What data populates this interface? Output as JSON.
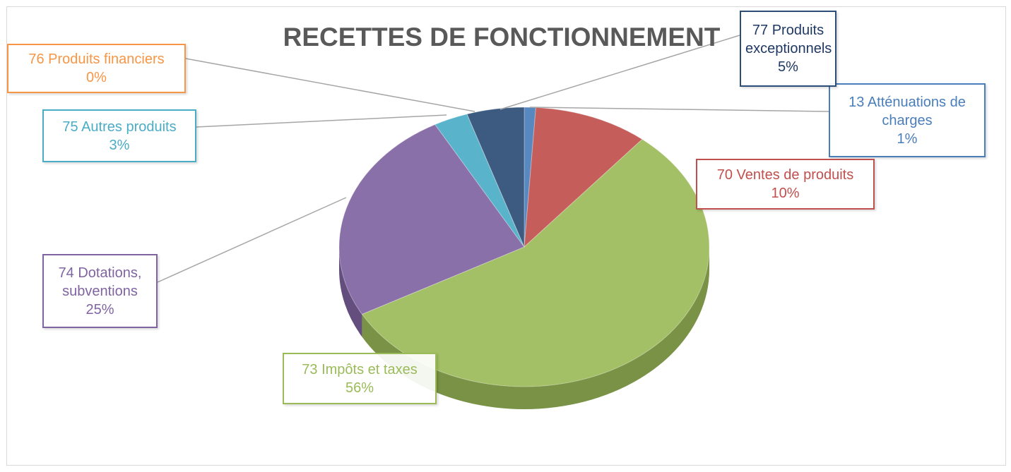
{
  "chart_data": {
    "type": "pie3d",
    "title": "RECETTES DE FONCTIONNEMENT",
    "categories": [
      "13 Atténuations de charges",
      "70 Ventes de produits",
      "73 Impôts et taxes",
      "74 Dotations, subventions",
      "75 Autres produits",
      "76 Produits financiers",
      "77 Produits exceptionnels"
    ],
    "values": [
      1,
      10,
      56,
      25,
      3,
      0,
      5
    ],
    "value_labels": [
      "1%",
      "10%",
      "56%",
      "25%",
      "3%",
      "0%",
      "5%"
    ],
    "colors": [
      "#4a7ebb",
      "#c0504d",
      "#9bbb59",
      "#8064a2",
      "#4bacc6",
      "#f79646",
      "#2c4d75"
    ]
  }
}
